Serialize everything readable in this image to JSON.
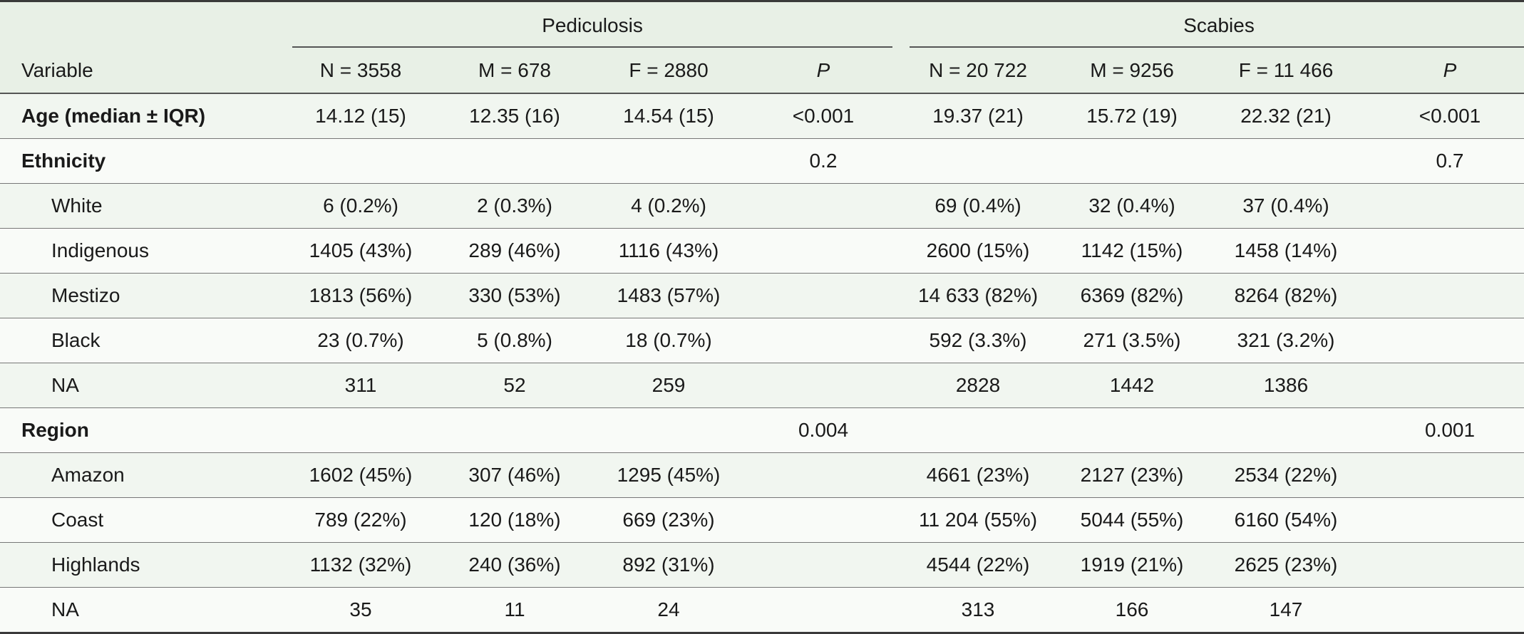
{
  "header": {
    "group_pediculosis": "Pediculosis",
    "group_scabies": "Scabies",
    "variable": "Variable",
    "ped_n": "N = 3558",
    "ped_m": "M = 678",
    "ped_f": "F = 2880",
    "ped_p": "P",
    "sca_n": "N = 20 722",
    "sca_m": "M = 9256",
    "sca_f": "F = 11 466",
    "sca_p": "P"
  },
  "rows": [
    {
      "label": "Age (median ± IQR)",
      "cells": [
        "14.12 (15)",
        "12.35 (16)",
        "14.54 (15)",
        "<0.001",
        "19.37 (21)",
        "15.72 (19)",
        "22.32 (21)",
        "<0.001"
      ]
    },
    {
      "label": "Ethnicity",
      "cells": [
        "",
        "",
        "",
        "0.2",
        "",
        "",
        "",
        "0.7"
      ]
    },
    {
      "label": "White",
      "cells": [
        "6 (0.2%)",
        "2 (0.3%)",
        "4 (0.2%)",
        "",
        "69 (0.4%)",
        "32 (0.4%)",
        "37 (0.4%)",
        ""
      ]
    },
    {
      "label": "Indigenous",
      "cells": [
        "1405 (43%)",
        "289 (46%)",
        "1116 (43%)",
        "",
        "2600 (15%)",
        "1142 (15%)",
        "1458 (14%)",
        ""
      ]
    },
    {
      "label": "Mestizo",
      "cells": [
        "1813 (56%)",
        "330 (53%)",
        "1483 (57%)",
        "",
        "14 633 (82%)",
        "6369 (82%)",
        "8264 (82%)",
        ""
      ]
    },
    {
      "label": "Black",
      "cells": [
        "23 (0.7%)",
        "5 (0.8%)",
        "18 (0.7%)",
        "",
        "592 (3.3%)",
        "271 (3.5%)",
        "321 (3.2%)",
        ""
      ]
    },
    {
      "label": "NA",
      "cells": [
        "311",
        "52",
        "259",
        "",
        "2828",
        "1442",
        "1386",
        ""
      ]
    },
    {
      "label": "Region",
      "cells": [
        "",
        "",
        "",
        "0.004",
        "",
        "",
        "",
        "0.001"
      ]
    },
    {
      "label": "Amazon",
      "cells": [
        "1602 (45%)",
        "307 (46%)",
        "1295 (45%)",
        "",
        "4661 (23%)",
        "2127 (23%)",
        "2534 (22%)",
        ""
      ]
    },
    {
      "label": "Coast",
      "cells": [
        "789 (22%)",
        "120 (18%)",
        "669 (23%)",
        "",
        "11 204 (55%)",
        "5044 (55%)",
        "6160 (54%)",
        ""
      ]
    },
    {
      "label": "Highlands",
      "cells": [
        "1132 (32%)",
        "240 (36%)",
        "892 (31%)",
        "",
        "4544 (22%)",
        "1919 (21%)",
        "2625 (23%)",
        ""
      ]
    },
    {
      "label": "NA",
      "cells": [
        "35",
        "11",
        "24",
        "",
        "313",
        "166",
        "147",
        ""
      ]
    }
  ]
}
